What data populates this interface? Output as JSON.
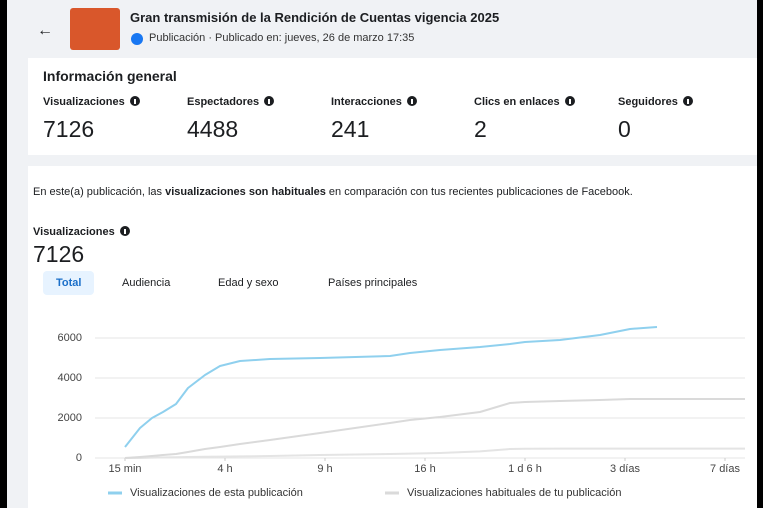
{
  "header": {
    "title": "Gran transmisión de la Rendición de Cuentas vigencia 2025",
    "subtitle": "Publicación · Publicado en: jueves, 26 de marzo 17:35"
  },
  "summary": {
    "title": "Información general",
    "metrics": [
      {
        "label": "Visualizaciones",
        "value": 7126
      },
      {
        "label": "Espectadores",
        "value": 4488
      },
      {
        "label": "Interacciones",
        "value": 241
      },
      {
        "label": "Clics en enlaces",
        "value": 2
      },
      {
        "label": "Seguidores",
        "value": 0
      }
    ]
  },
  "insight": {
    "parts": [
      "En este(a) publicación, las ",
      "visualizaciones son habituales",
      " en comparación con tus recientes publicaciones de Facebook."
    ]
  },
  "metric": {
    "label": "Visualizaciones",
    "value": 7126
  },
  "tabs": [
    "Total",
    "Audiencia",
    "Edad y sexo",
    "Países principales"
  ],
  "chart_data": {
    "type": "line",
    "x": [
      0,
      0.15,
      0.27,
      0.38,
      0.51,
      0.63,
      0.8,
      0.95,
      1.15,
      1.45,
      1.95,
      2.65,
      2.85,
      3.15,
      3.55,
      3.85,
      4.0,
      4.35,
      4.75,
      5.05,
      5.32,
      5.6,
      6.2
    ],
    "xlim": [
      0,
      6.2
    ],
    "xticks": [
      {
        "value": 0,
        "label": "15 min"
      },
      {
        "value": 1,
        "label": "4 h"
      },
      {
        "value": 2,
        "label": "9 h"
      },
      {
        "value": 3,
        "label": "16 h"
      },
      {
        "value": 4,
        "label": "1 d 6 h"
      },
      {
        "value": 5,
        "label": "3 días"
      },
      {
        "value": 6,
        "label": "7 días"
      }
    ],
    "ylim": [
      0,
      7000
    ],
    "yticks": [
      0,
      2000,
      4000,
      6000
    ],
    "grid": true,
    "series": [
      {
        "name": "Visualizaciones de esta publicación",
        "color": "#8fd0ee",
        "values": [
          550,
          1500,
          2000,
          2300,
          2700,
          3500,
          4150,
          4600,
          4850,
          4950,
          5000,
          5100,
          5250,
          5400,
          5550,
          5700,
          5800,
          5900,
          6150,
          6450,
          6550,
          null,
          null
        ]
      },
      {
        "name": "Visualizaciones habituales de tu publicación",
        "color": "#dadada",
        "values": [
          0,
          50,
          100,
          150,
          200,
          300,
          450,
          550,
          700,
          900,
          1250,
          1750,
          1900,
          2050,
          2300,
          2750,
          2800,
          2850,
          2900,
          2950,
          2950,
          2950,
          2950
        ]
      },
      {
        "color": "#e4e4e4",
        "values": [
          0,
          0,
          20,
          30,
          40,
          50,
          60,
          70,
          80,
          100,
          150,
          200,
          220,
          250,
          330,
          450,
          460,
          470,
          470,
          470,
          470,
          470,
          470
        ]
      }
    ]
  }
}
